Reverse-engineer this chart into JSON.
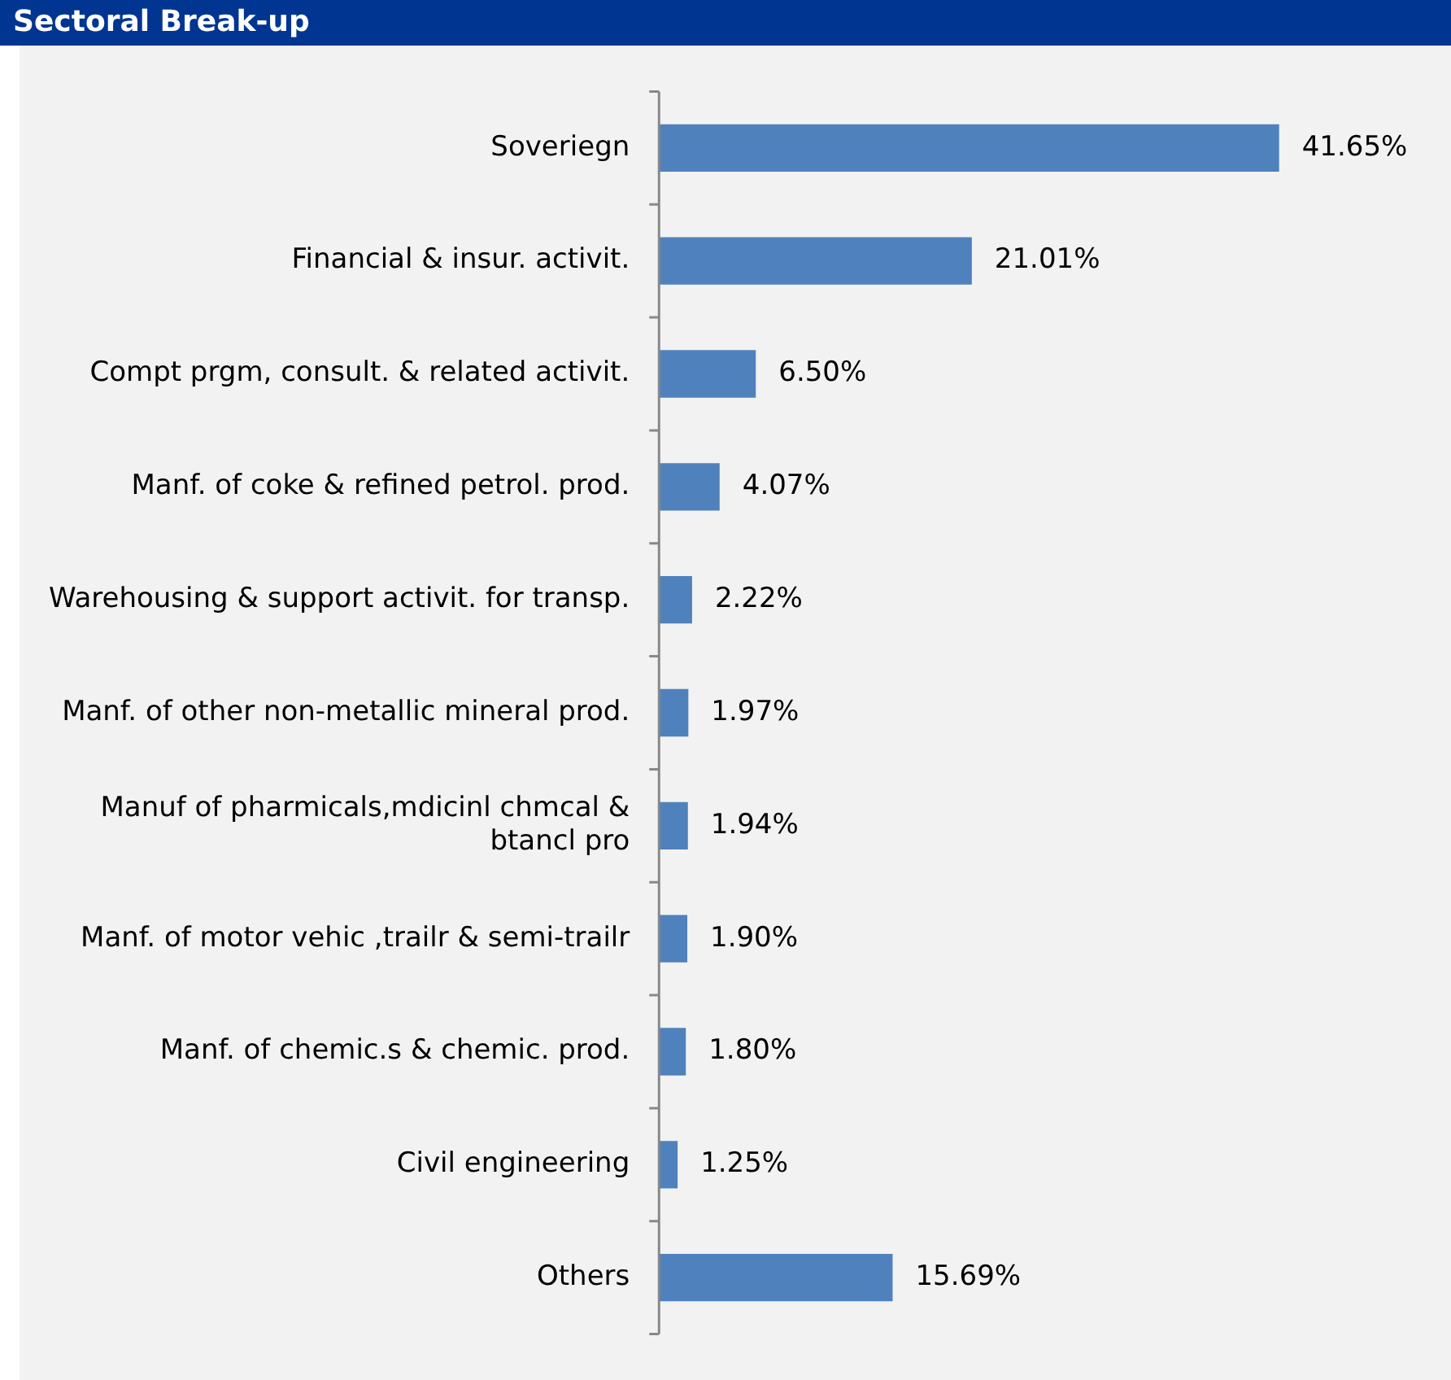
{
  "chart_data": {
    "type": "bar",
    "orientation": "horizontal",
    "title": "Sectoral Break-up",
    "categories": [
      "Soveriegn",
      "Financial & insur. activit.",
      "Compt prgm, consult. & related activit.",
      "Manf. of coke & refined petrol. prod.",
      "Warehousing & support activit. for transp.",
      "Manf. of other non-metallic mineral prod.",
      "Manuf of pharmicals,mdicinl chmcal & btancl pro",
      "Manf. of motor vehic ,trailr & semi-trailr",
      "Manf. of chemic.s & chemic. prod.",
      "Civil engineering",
      "Others"
    ],
    "values": [
      41.65,
      21.01,
      6.5,
      4.07,
      2.22,
      1.97,
      1.94,
      1.9,
      1.8,
      1.25,
      15.69
    ],
    "value_labels": [
      "41.65%",
      "21.01%",
      "6.50%",
      "4.07%",
      "2.22%",
      "1.97%",
      "1.94%",
      "1.90%",
      "1.80%",
      "1.25%",
      "15.69%"
    ],
    "color": "#4f81bd",
    "legend": false
  }
}
